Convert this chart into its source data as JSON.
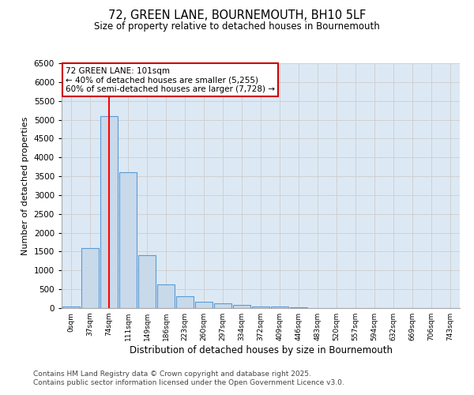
{
  "title1": "72, GREEN LANE, BOURNEMOUTH, BH10 5LF",
  "title2": "Size of property relative to detached houses in Bournemouth",
  "xlabel": "Distribution of detached houses by size in Bournemouth",
  "ylabel": "Number of detached properties",
  "categories": [
    "0sqm",
    "37sqm",
    "74sqm",
    "111sqm",
    "149sqm",
    "186sqm",
    "223sqm",
    "260sqm",
    "297sqm",
    "334sqm",
    "372sqm",
    "409sqm",
    "446sqm",
    "483sqm",
    "520sqm",
    "557sqm",
    "594sqm",
    "632sqm",
    "669sqm",
    "706sqm",
    "743sqm"
  ],
  "values": [
    50,
    1600,
    5100,
    3600,
    1400,
    620,
    320,
    160,
    120,
    80,
    50,
    40,
    30,
    5,
    5,
    5,
    2,
    2,
    2,
    2,
    2
  ],
  "bar_color": "#c8d9ea",
  "bar_edge_color": "#5b9bd5",
  "red_line_x": 2,
  "annotation_text": "72 GREEN LANE: 101sqm\n← 40% of detached houses are smaller (5,255)\n60% of semi-detached houses are larger (7,728) →",
  "annotation_box_color": "#ffffff",
  "annotation_box_edge": "#cc0000",
  "footnote1": "Contains HM Land Registry data © Crown copyright and database right 2025.",
  "footnote2": "Contains public sector information licensed under the Open Government Licence v3.0.",
  "ylim": [
    0,
    6500
  ],
  "yticks": [
    0,
    500,
    1000,
    1500,
    2000,
    2500,
    3000,
    3500,
    4000,
    4500,
    5000,
    5500,
    6000,
    6500
  ],
  "background_color": "#ffffff",
  "grid_color": "#d0d0d0",
  "plot_bg_color": "#dce9f5"
}
